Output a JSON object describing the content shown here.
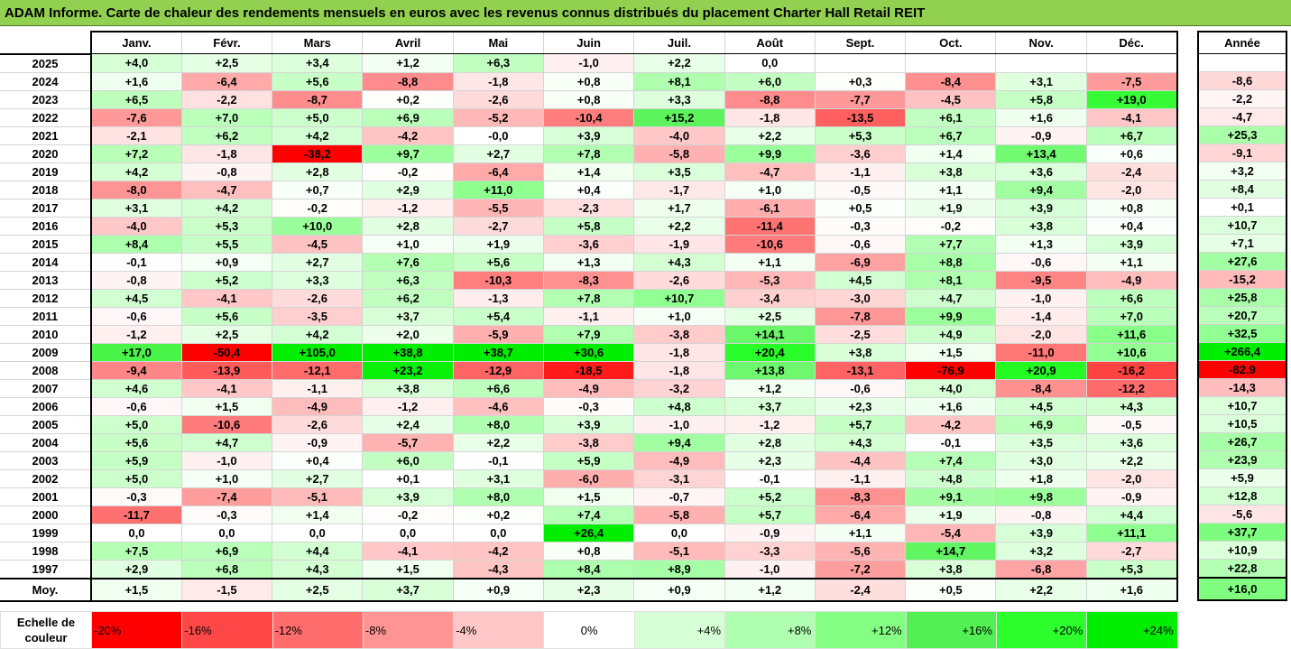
{
  "title": "ADAM Informe. Carte de chaleur des rendements mensuels en euros avec les revenus connus distribués du placement Charter Hall Retail REIT",
  "chart_data": {
    "type": "heatmap",
    "months": [
      "Janv.",
      "Févr.",
      "Mars",
      "Avril",
      "Mai",
      "Juin",
      "Juil.",
      "Août",
      "Sept.",
      "Oct.",
      "Nov.",
      "Déc."
    ],
    "year_column_label": "Année",
    "rows": [
      {
        "year": "2025",
        "values": [
          "+4,0",
          "+2,5",
          "+3,4",
          "+1,2",
          "+6,3",
          "-1,0",
          "+2,2",
          "0,0",
          "",
          "",
          "",
          ""
        ],
        "annual": ""
      },
      {
        "year": "2024",
        "values": [
          "+1,6",
          "-6,4",
          "+5,6",
          "-8,8",
          "-1,8",
          "+0,8",
          "+8,1",
          "+6,0",
          "+0,3",
          "-8,4",
          "+3,1",
          "-7,5"
        ],
        "annual": "-8,6"
      },
      {
        "year": "2023",
        "values": [
          "+6,5",
          "-2,2",
          "-8,7",
          "+0,2",
          "-2,6",
          "+0,8",
          "+3,3",
          "-8,8",
          "-7,7",
          "-4,5",
          "+5,8",
          "+19,0"
        ],
        "annual": "-2,2"
      },
      {
        "year": "2022",
        "values": [
          "-7,6",
          "+7,0",
          "+5,0",
          "+6,9",
          "-5,2",
          "-10,4",
          "+15,2",
          "-1,8",
          "-13,5",
          "+6,1",
          "+1,6",
          "-4,1"
        ],
        "annual": "-4,7"
      },
      {
        "year": "2021",
        "values": [
          "-2,1",
          "+6,2",
          "+4,2",
          "-4,2",
          "-0,0",
          "+3,9",
          "-4,0",
          "+2,2",
          "+5,3",
          "+6,7",
          "-0,9",
          "+6,7"
        ],
        "annual": "+25,3"
      },
      {
        "year": "2020",
        "values": [
          "+7,2",
          "-1,8",
          "-38,2",
          "+9,7",
          "+2,7",
          "+7,8",
          "-5,8",
          "+9,9",
          "-3,6",
          "+1,4",
          "+13,4",
          "+0,6"
        ],
        "annual": "-9,1"
      },
      {
        "year": "2019",
        "values": [
          "+4,2",
          "-0,8",
          "+2,8",
          "-0,2",
          "-6,4",
          "+1,4",
          "+3,5",
          "-4,7",
          "-1,1",
          "+3,8",
          "+3,6",
          "-2,4"
        ],
        "annual": "+3,2"
      },
      {
        "year": "2018",
        "values": [
          "-8,0",
          "-4,7",
          "+0,7",
          "+2,9",
          "+11,0",
          "+0,4",
          "-1,7",
          "+1,0",
          "-0,5",
          "+1,1",
          "+9,4",
          "-2,0"
        ],
        "annual": "+8,4"
      },
      {
        "year": "2017",
        "values": [
          "+3,1",
          "+4,2",
          "-0,2",
          "-1,2",
          "-5,5",
          "-2,3",
          "+1,7",
          "-6,1",
          "+0,5",
          "+1,9",
          "+3,9",
          "+0,8"
        ],
        "annual": "+0,1"
      },
      {
        "year": "2016",
        "values": [
          "-4,0",
          "+5,3",
          "+10,0",
          "+2,8",
          "-2,7",
          "+5,8",
          "+2,2",
          "-11,4",
          "-0,3",
          "-0,2",
          "+3,8",
          "+0,4"
        ],
        "annual": "+10,7"
      },
      {
        "year": "2015",
        "values": [
          "+8,4",
          "+5,5",
          "-4,5",
          "+1,0",
          "+1,9",
          "-3,6",
          "-1,9",
          "-10,6",
          "-0,6",
          "+7,7",
          "+1,3",
          "+3,9"
        ],
        "annual": "+7,1"
      },
      {
        "year": "2014",
        "values": [
          "-0,1",
          "+0,9",
          "+2,7",
          "+7,6",
          "+5,6",
          "+1,3",
          "+4,3",
          "+1,1",
          "-6,9",
          "+8,8",
          "-0,6",
          "+1,1"
        ],
        "annual": "+27,6"
      },
      {
        "year": "2013",
        "values": [
          "-0,8",
          "+5,2",
          "+3,3",
          "+6,3",
          "-10,3",
          "-8,3",
          "-2,6",
          "-5,3",
          "+4,5",
          "+8,1",
          "-9,5",
          "-4,9"
        ],
        "annual": "-15,2"
      },
      {
        "year": "2012",
        "values": [
          "+4,5",
          "-4,1",
          "-2,6",
          "+6,2",
          "-1,3",
          "+7,8",
          "+10,7",
          "-3,4",
          "-3,0",
          "+4,7",
          "-1,0",
          "+6,6"
        ],
        "annual": "+25,8"
      },
      {
        "year": "2011",
        "values": [
          "-0,6",
          "+5,6",
          "-3,5",
          "+3,7",
          "+5,4",
          "-1,1",
          "+1,0",
          "+2,5",
          "-7,8",
          "+9,9",
          "-1,4",
          "+7,0"
        ],
        "annual": "+20,7"
      },
      {
        "year": "2010",
        "values": [
          "-1,2",
          "+2,5",
          "+4,2",
          "+2,0",
          "-5,9",
          "+7,9",
          "-3,8",
          "+14,1",
          "-2,5",
          "+4,9",
          "-2,0",
          "+11,6"
        ],
        "annual": "+32,5"
      },
      {
        "year": "2009",
        "values": [
          "+17,0",
          "-50,4",
          "+105,0",
          "+38,8",
          "+38,7",
          "+30,6",
          "-1,8",
          "+20,4",
          "+3,8",
          "+1,5",
          "-11,0",
          "+10,6"
        ],
        "annual": "+266,4"
      },
      {
        "year": "2008",
        "values": [
          "-9,4",
          "-13,9",
          "-12,1",
          "+23,2",
          "-12,9",
          "-18,5",
          "-1,8",
          "+13,8",
          "-13,1",
          "-76,9",
          "+20,9",
          "-16,2"
        ],
        "annual": "-82,9"
      },
      {
        "year": "2007",
        "values": [
          "+4,6",
          "-4,1",
          "-1,1",
          "+3,8",
          "+6,6",
          "-4,9",
          "-3,2",
          "+1,2",
          "-0,6",
          "+4,0",
          "-8,4",
          "-12,2"
        ],
        "annual": "-14,3"
      },
      {
        "year": "2006",
        "values": [
          "-0,6",
          "+1,5",
          "-4,9",
          "-1,2",
          "-4,6",
          "-0,3",
          "+4,8",
          "+3,7",
          "+2,3",
          "+1,6",
          "+4,5",
          "+4,3"
        ],
        "annual": "+10,7"
      },
      {
        "year": "2005",
        "values": [
          "+5,0",
          "-10,6",
          "-2,6",
          "+2,4",
          "+8,0",
          "+3,9",
          "-1,0",
          "-1,2",
          "+5,7",
          "-4,2",
          "+6,9",
          "-0,5"
        ],
        "annual": "+10,5"
      },
      {
        "year": "2004",
        "values": [
          "+5,6",
          "+4,7",
          "-0,9",
          "-5,7",
          "+2,2",
          "-3,8",
          "+9,4",
          "+2,8",
          "+4,3",
          "-0,1",
          "+3,5",
          "+3,6"
        ],
        "annual": "+26,7"
      },
      {
        "year": "2003",
        "values": [
          "+5,9",
          "-1,0",
          "+0,4",
          "+6,0",
          "-0,1",
          "+5,9",
          "-4,9",
          "+2,3",
          "-4,4",
          "+7,4",
          "+3,0",
          "+2,2"
        ],
        "annual": "+23,9"
      },
      {
        "year": "2002",
        "values": [
          "+5,0",
          "+1,0",
          "+2,7",
          "+0,1",
          "+3,1",
          "-6,0",
          "-3,1",
          "-0,1",
          "-1,1",
          "+4,8",
          "+1,8",
          "-2,0"
        ],
        "annual": "+5,9"
      },
      {
        "year": "2001",
        "values": [
          "-0,3",
          "-7,4",
          "-5,1",
          "+3,9",
          "+8,0",
          "+1,5",
          "-0,7",
          "+5,2",
          "-8,3",
          "+9,1",
          "+9,8",
          "-0,9"
        ],
        "annual": "+12,8"
      },
      {
        "year": "2000",
        "values": [
          "-11,7",
          "-0,3",
          "+1,4",
          "-0,2",
          "+0,2",
          "+7,4",
          "-5,8",
          "+5,7",
          "-6,4",
          "+1,9",
          "-0,8",
          "+4,4"
        ],
        "annual": "-5,6"
      },
      {
        "year": "1999",
        "values": [
          "0,0",
          "0,0",
          "0,0",
          "0,0",
          "0,0",
          "+26,4",
          "0,0",
          "-0,9",
          "+1,1",
          "-5,4",
          "+3,9",
          "+11,1"
        ],
        "annual": "+37,7"
      },
      {
        "year": "1998",
        "values": [
          "+7,5",
          "+6,9",
          "+4,4",
          "-4,1",
          "-4,2",
          "+0,8",
          "-5,1",
          "-3,3",
          "-5,6",
          "+14,7",
          "+3,2",
          "-2,7"
        ],
        "annual": "+10,9"
      },
      {
        "year": "1997",
        "values": [
          "+2,9",
          "+6,8",
          "+4,3",
          "+1,5",
          "-4,3",
          "+8,4",
          "+8,9",
          "-1,0",
          "-7,2",
          "+3,8",
          "-6,8",
          "+5,3"
        ],
        "annual": "+22,8"
      }
    ],
    "average_row": {
      "label": "Moy.",
      "values": [
        "+1,5",
        "-1,5",
        "+2,5",
        "+3,7",
        "+0,9",
        "+2,3",
        "+0,9",
        "+1,2",
        "-2,4",
        "+0,5",
        "+2,2",
        "+1,6"
      ],
      "annual": "+16,0"
    },
    "color_scale": {
      "label": "Echelle de couleur",
      "stops": [
        "-20%",
        "-16%",
        "-12%",
        "-8%",
        "-4%",
        "0%",
        "+4%",
        "+8%",
        "+12%",
        "+16%",
        "+20%",
        "+24%"
      ],
      "stop_values": [
        -20,
        -16,
        -12,
        -8,
        -4,
        0,
        4,
        8,
        12,
        16,
        20,
        24
      ],
      "colors": [
        "#ff0000",
        "#ff4747",
        "#ff6d6d",
        "#ff9494",
        "#ffc8c8",
        "#ffffff",
        "#d6ffd6",
        "#b0ffb0",
        "#84ff84",
        "#52f052",
        "#2dff2d",
        "#00ee00"
      ]
    }
  }
}
